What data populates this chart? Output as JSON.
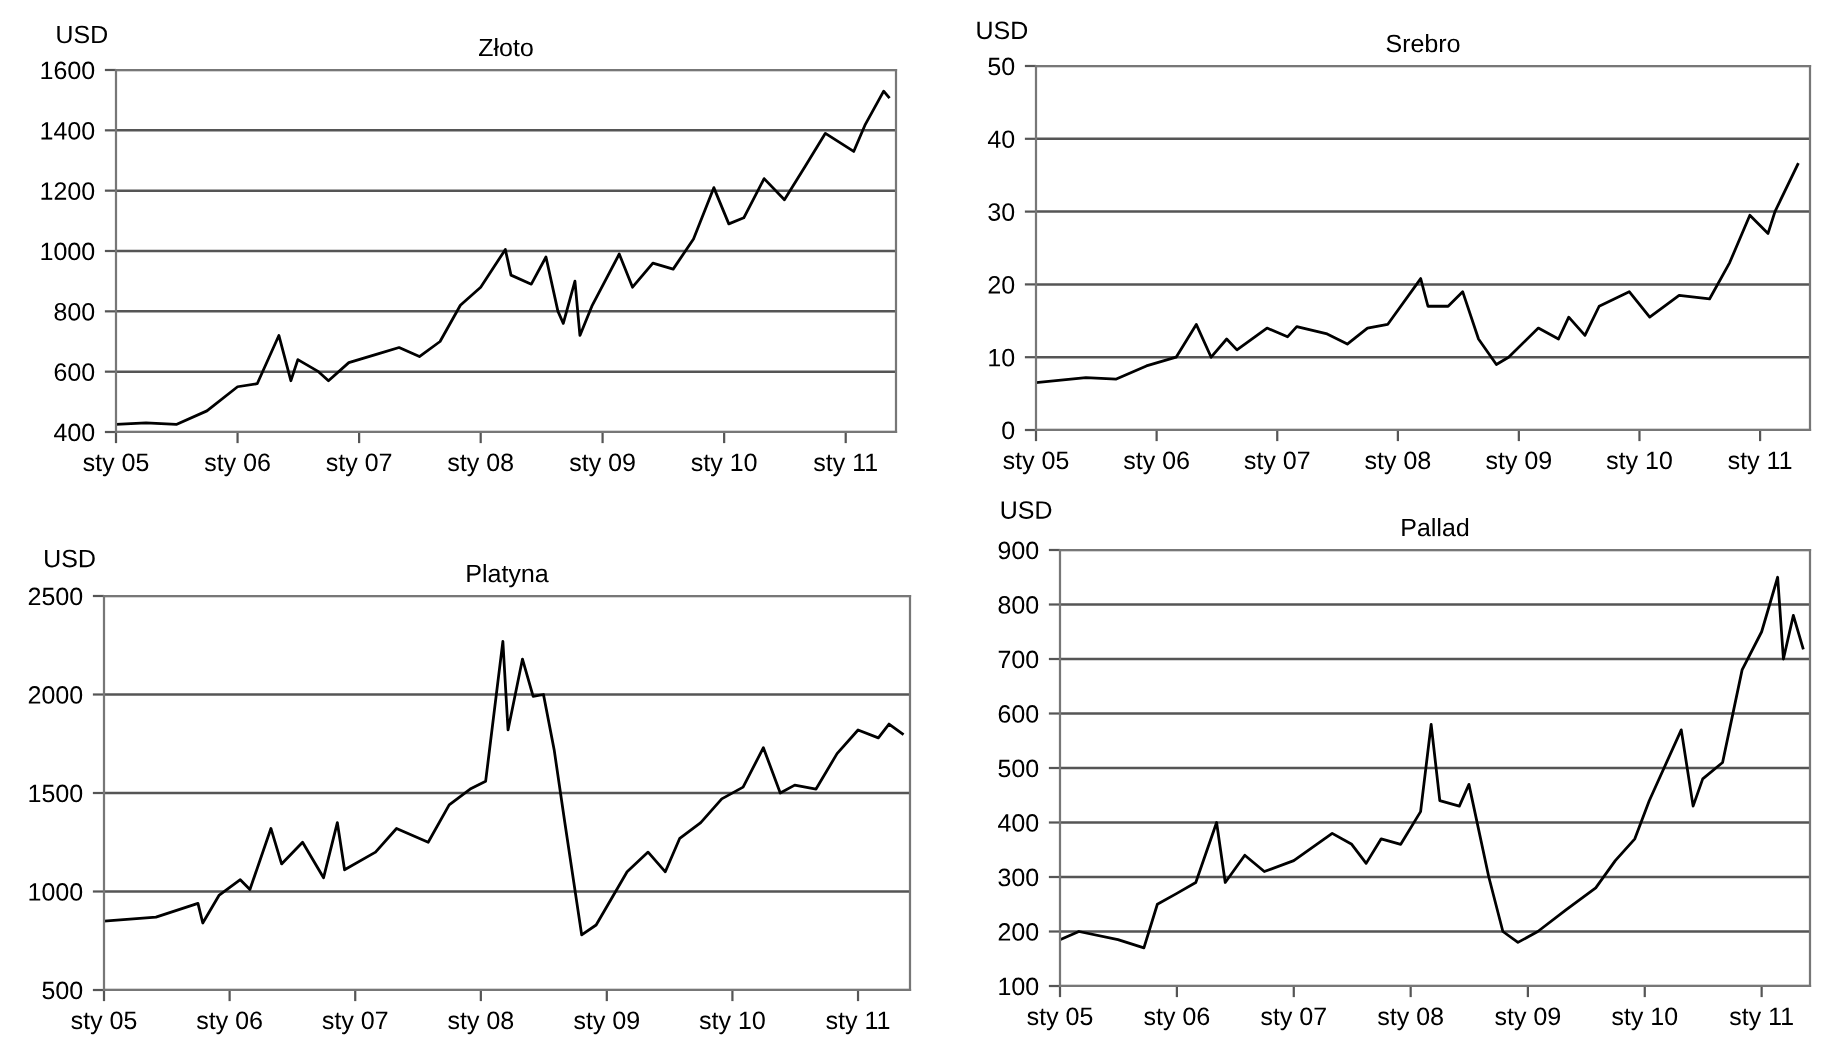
{
  "chart_data": [
    {
      "type": "line",
      "title": "Złoto",
      "ylabel": "USD",
      "grid": "y",
      "series": [
        {
          "color": "#000000",
          "x": [
            "2005-01-01",
            "2005-04-01",
            "2005-07-01",
            "2005-10-01",
            "2006-01-01",
            "2006-03-01",
            "2006-05-05",
            "2006-06-10",
            "2006-07-01",
            "2006-09-01",
            "2006-10-01",
            "2006-12-01",
            "2007-03-01",
            "2007-05-01",
            "2007-07-01",
            "2007-09-01",
            "2007-11-01",
            "2008-01-01",
            "2008-03-15",
            "2008-04-01",
            "2008-06-01",
            "2008-07-15",
            "2008-08-20",
            "2008-09-05",
            "2008-10-10",
            "2008-10-25",
            "2008-12-01",
            "2009-02-20",
            "2009-04-01",
            "2009-06-01",
            "2009-08-01",
            "2009-10-01",
            "2009-12-01",
            "2010-01-15",
            "2010-03-01",
            "2010-05-01",
            "2010-07-01",
            "2010-09-01",
            "2010-11-01",
            "2011-01-25",
            "2011-03-01",
            "2011-04-25",
            "2011-05-10"
          ],
          "values": [
            425,
            430,
            425,
            470,
            550,
            560,
            720,
            570,
            640,
            600,
            570,
            630,
            660,
            680,
            650,
            700,
            820,
            880,
            1005,
            920,
            890,
            980,
            800,
            760,
            900,
            720,
            820,
            990,
            880,
            960,
            940,
            1040,
            1210,
            1090,
            1110,
            1240,
            1170,
            1280,
            1390,
            1330,
            1420,
            1530,
            1510
          ]
        }
      ],
      "xlim": [
        "2005-01-01",
        "2011-06-01"
      ],
      "xticks": [
        {
          "value": "2005-01-01",
          "label": "sty 05"
        },
        {
          "value": "2006-01-01",
          "label": "sty 06"
        },
        {
          "value": "2007-01-01",
          "label": "sty 07"
        },
        {
          "value": "2008-01-01",
          "label": "sty 08"
        },
        {
          "value": "2009-01-01",
          "label": "sty 09"
        },
        {
          "value": "2010-01-01",
          "label": "sty 10"
        },
        {
          "value": "2011-01-01",
          "label": "sty 11"
        }
      ],
      "ylim": [
        400,
        1600
      ],
      "yticks": [
        400,
        600,
        800,
        1000,
        1200,
        1400,
        1600
      ]
    },
    {
      "type": "line",
      "title": "Srebro",
      "ylabel": "USD",
      "grid": "y",
      "series": [
        {
          "color": "#000000",
          "x": [
            "2005-01-01",
            "2005-06-01",
            "2005-09-01",
            "2005-12-01",
            "2006-03-01",
            "2006-05-01",
            "2006-06-15",
            "2006-08-01",
            "2006-09-01",
            "2006-12-01",
            "2007-02-01",
            "2007-03-01",
            "2007-06-01",
            "2007-08-01",
            "2007-10-01",
            "2007-12-01",
            "2008-03-10",
            "2008-04-01",
            "2008-06-01",
            "2008-07-15",
            "2008-09-01",
            "2008-10-25",
            "2008-12-01",
            "2009-03-01",
            "2009-05-01",
            "2009-06-01",
            "2009-07-20",
            "2009-09-01",
            "2009-12-01",
            "2010-02-01",
            "2010-05-01",
            "2010-08-01",
            "2010-10-01",
            "2010-12-01",
            "2011-01-25",
            "2011-02-15",
            "2011-04-25"
          ],
          "values": [
            6.5,
            7.2,
            7.0,
            8.8,
            10,
            14.5,
            10,
            12.5,
            11,
            14,
            12.8,
            14.2,
            13.2,
            11.8,
            14,
            14.5,
            20.8,
            17,
            17,
            19,
            12.5,
            9,
            10,
            14,
            12.5,
            15.5,
            13,
            17,
            19,
            15.5,
            18.5,
            18,
            23,
            29.5,
            27,
            30,
            36.5
          ]
        }
      ],
      "xlim": [
        "2005-01-01",
        "2011-06-01"
      ],
      "xticks": [
        {
          "value": "2005-01-01",
          "label": "sty 05"
        },
        {
          "value": "2006-01-01",
          "label": "sty 06"
        },
        {
          "value": "2007-01-01",
          "label": "sty 07"
        },
        {
          "value": "2008-01-01",
          "label": "sty 08"
        },
        {
          "value": "2009-01-01",
          "label": "sty 09"
        },
        {
          "value": "2010-01-01",
          "label": "sty 10"
        },
        {
          "value": "2011-01-01",
          "label": "sty 11"
        }
      ],
      "ylim": [
        0,
        50
      ],
      "yticks": [
        0,
        10,
        20,
        30,
        40,
        50
      ]
    },
    {
      "type": "line",
      "title": "Platyna",
      "ylabel": "USD",
      "grid": "y",
      "series": [
        {
          "color": "#000000",
          "x": [
            "2005-01-01",
            "2005-06-01",
            "2005-10-01",
            "2005-10-15",
            "2005-12-01",
            "2006-02-01",
            "2006-03-01",
            "2006-05-01",
            "2006-06-01",
            "2006-08-01",
            "2006-10-01",
            "2006-11-10",
            "2006-12-01",
            "2007-03-01",
            "2007-05-01",
            "2007-08-01",
            "2007-10-01",
            "2007-12-01",
            "2008-01-15",
            "2008-03-05",
            "2008-03-20",
            "2008-05-01",
            "2008-06-01",
            "2008-07-01",
            "2008-08-01",
            "2008-09-01",
            "2008-10-20",
            "2008-12-01",
            "2009-03-01",
            "2009-05-01",
            "2009-06-20",
            "2009-08-01",
            "2009-10-01",
            "2009-12-01",
            "2010-02-01",
            "2010-04-01",
            "2010-05-20",
            "2010-07-01",
            "2010-09-01",
            "2010-11-01",
            "2011-01-01",
            "2011-03-01",
            "2011-04-01",
            "2011-05-10"
          ],
          "values": [
            850,
            870,
            940,
            840,
            980,
            1060,
            1010,
            1320,
            1140,
            1250,
            1070,
            1350,
            1110,
            1200,
            1320,
            1250,
            1440,
            1520,
            1560,
            2270,
            1820,
            2180,
            1990,
            2000,
            1720,
            1350,
            780,
            830,
            1100,
            1200,
            1100,
            1270,
            1350,
            1470,
            1530,
            1730,
            1500,
            1540,
            1520,
            1700,
            1820,
            1780,
            1850,
            1800
          ]
        }
      ],
      "xlim": [
        "2005-01-01",
        "2011-06-01"
      ],
      "xticks": [
        {
          "value": "2005-01-01",
          "label": "sty 05"
        },
        {
          "value": "2006-01-01",
          "label": "sty 06"
        },
        {
          "value": "2007-01-01",
          "label": "sty 07"
        },
        {
          "value": "2008-01-01",
          "label": "sty 08"
        },
        {
          "value": "2009-01-01",
          "label": "sty 09"
        },
        {
          "value": "2010-01-01",
          "label": "sty 10"
        },
        {
          "value": "2011-01-01",
          "label": "sty 11"
        }
      ],
      "ylim": [
        500,
        2500
      ],
      "yticks": [
        500,
        1000,
        1500,
        2000,
        2500
      ]
    },
    {
      "type": "line",
      "title": "Pallad",
      "ylabel": "USD",
      "grid": "y",
      "series": [
        {
          "color": "#000000",
          "x": [
            "2005-01-01",
            "2005-03-01",
            "2005-07-01",
            "2005-09-20",
            "2005-11-01",
            "2006-01-01",
            "2006-03-01",
            "2006-05-05",
            "2006-06-01",
            "2006-08-01",
            "2006-10-01",
            "2007-01-01",
            "2007-05-01",
            "2007-07-01",
            "2007-08-15",
            "2007-10-01",
            "2007-12-01",
            "2008-02-01",
            "2008-03-05",
            "2008-04-01",
            "2008-06-01",
            "2008-07-01",
            "2008-09-01",
            "2008-10-15",
            "2008-12-01",
            "2009-02-01",
            "2009-05-01",
            "2009-08-01",
            "2009-10-01",
            "2009-12-01",
            "2010-01-15",
            "2010-04-25",
            "2010-06-01",
            "2010-07-01",
            "2010-09-01",
            "2010-11-01",
            "2011-01-01",
            "2011-02-20",
            "2011-03-10",
            "2011-04-10",
            "2011-05-10"
          ],
          "values": [
            185,
            200,
            185,
            170,
            250,
            270,
            290,
            400,
            290,
            340,
            310,
            330,
            380,
            360,
            325,
            370,
            360,
            420,
            580,
            440,
            430,
            470,
            300,
            200,
            180,
            200,
            240,
            280,
            330,
            370,
            440,
            570,
            430,
            480,
            510,
            680,
            750,
            850,
            700,
            780,
            720
          ]
        }
      ],
      "xlim": [
        "2005-01-01",
        "2011-06-01"
      ],
      "xticks": [
        {
          "value": "2005-01-01",
          "label": "sty 05"
        },
        {
          "value": "2006-01-01",
          "label": "sty 06"
        },
        {
          "value": "2007-01-01",
          "label": "sty 07"
        },
        {
          "value": "2008-01-01",
          "label": "sty 08"
        },
        {
          "value": "2009-01-01",
          "label": "sty 09"
        },
        {
          "value": "2010-01-01",
          "label": "sty 10"
        },
        {
          "value": "2011-01-01",
          "label": "sty 11"
        }
      ],
      "ylim": [
        100,
        900
      ],
      "yticks": [
        100,
        200,
        300,
        400,
        500,
        600,
        700,
        800,
        900
      ]
    }
  ]
}
